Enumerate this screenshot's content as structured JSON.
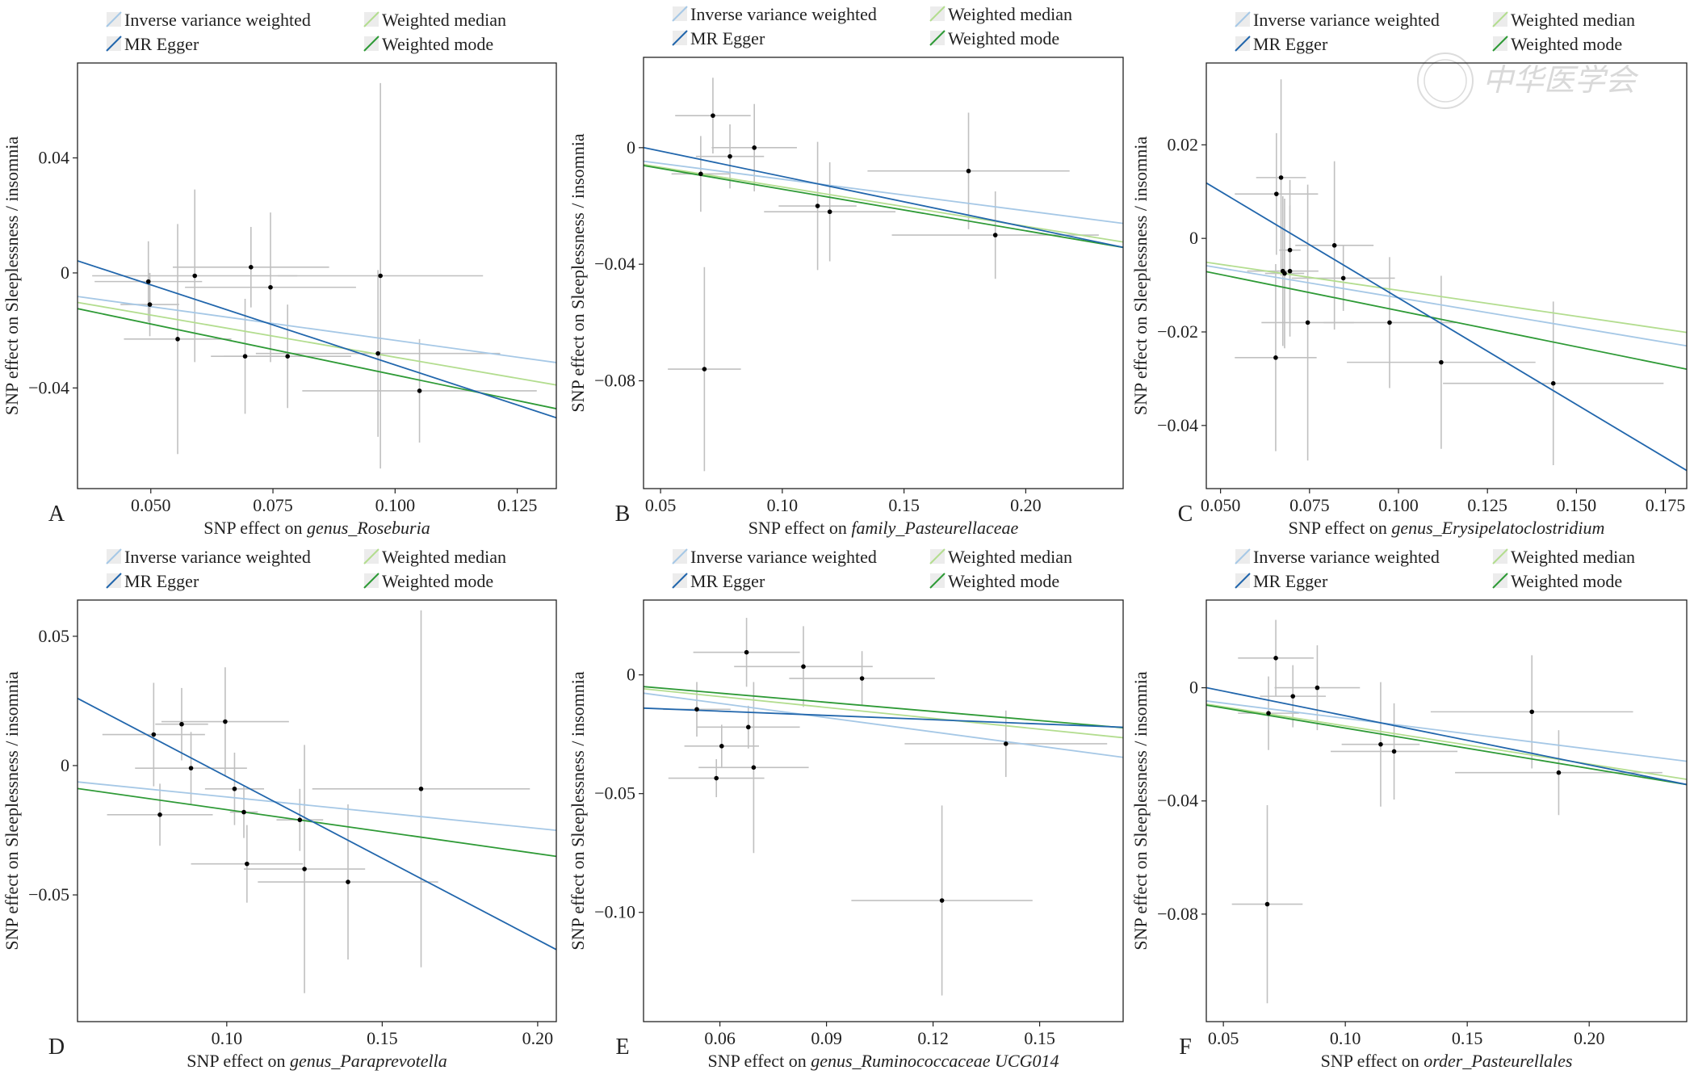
{
  "figure": {
    "legend_labels": {
      "ivw": "Inverse variance weighted",
      "egger": "MR Egger",
      "wmedian": "Weighted median",
      "wmode": "Weighted mode"
    },
    "watermark_text": "中华医学会",
    "colors": {
      "ivw": "#a6c8e6",
      "egger": "#2166ac",
      "wmedian": "#b3dd8f",
      "wmode": "#2e9a36",
      "errorbar": "#c0c0c0",
      "point": "#000000",
      "frame": "#222222"
    }
  },
  "chart_data": [
    {
      "panel": "A",
      "type": "scatter",
      "xlabel_prefix": "SNP effect on ",
      "xlabel_taxon": "genus_Roseburia",
      "ylabel": "SNP effect on Sleeplessness / insomnia",
      "xlim": [
        0.035,
        0.133
      ],
      "ylim": [
        -0.075,
        0.073
      ],
      "xticks": [
        0.05,
        0.075,
        0.1,
        0.125
      ],
      "xtick_labels": [
        "0.050",
        "0.075",
        "0.100",
        "0.125"
      ],
      "yticks": [
        0.04,
        0.0,
        -0.04
      ],
      "ytick_labels": [
        "0.04",
        "0",
        "−0.04"
      ],
      "points": [
        {
          "x": 0.0495,
          "y": -0.003,
          "se_x": 0.011,
          "se_y": 0.014
        },
        {
          "x": 0.0498,
          "y": -0.011,
          "se_x": 0.006,
          "se_y": 0.011
        },
        {
          "x": 0.0555,
          "y": -0.023,
          "se_x": 0.011,
          "se_y": 0.04
        },
        {
          "x": 0.059,
          "y": -0.001,
          "se_x": 0.021,
          "se_y": 0.03
        },
        {
          "x": 0.0693,
          "y": -0.029,
          "se_x": 0.007,
          "se_y": 0.02
        },
        {
          "x": 0.0705,
          "y": 0.002,
          "se_x": 0.016,
          "se_y": 0.014
        },
        {
          "x": 0.0745,
          "y": -0.005,
          "se_x": 0.0175,
          "se_y": 0.026
        },
        {
          "x": 0.078,
          "y": -0.029,
          "se_x": 0.013,
          "se_y": 0.018
        },
        {
          "x": 0.0965,
          "y": -0.028,
          "se_x": 0.025,
          "se_y": 0.029
        },
        {
          "x": 0.097,
          "y": -0.001,
          "se_x": 0.021,
          "se_y": 0.067
        },
        {
          "x": 0.105,
          "y": -0.041,
          "se_x": 0.024,
          "se_y": 0.018
        }
      ],
      "lines": [
        {
          "method": "ivw",
          "intercept": 0.0,
          "slope": -0.2344
        },
        {
          "method": "wmedian",
          "intercept": 0.0,
          "slope": -0.293
        },
        {
          "method": "wmode",
          "intercept": 0.0,
          "slope": -0.355
        },
        {
          "method": "egger",
          "intercept": 0.0237,
          "slope": -0.5569
        }
      ]
    },
    {
      "panel": "B",
      "type": "scatter",
      "xlabel_prefix": "SNP effect on ",
      "xlabel_taxon": "family_Pasteurellaceae",
      "ylabel": "SNP effect on Sleeplessness / insomnia",
      "xlim": [
        0.043,
        0.24
      ],
      "ylim": [
        -0.117,
        0.031
      ],
      "xticks": [
        0.05,
        0.1,
        0.15,
        0.2
      ],
      "xtick_labels": [
        "0.05",
        "0.10",
        "0.15",
        "0.20"
      ],
      "yticks": [
        0.0,
        -0.04,
        -0.08
      ],
      "ytick_labels": [
        "0",
        "−0.04",
        "−0.08"
      ],
      "points": [
        {
          "x": 0.0665,
          "y": -0.009,
          "se_x": 0.012,
          "se_y": 0.013
        },
        {
          "x": 0.068,
          "y": -0.076,
          "se_x": 0.015,
          "se_y": 0.035
        },
        {
          "x": 0.0715,
          "y": 0.011,
          "se_x": 0.0155,
          "se_y": 0.013
        },
        {
          "x": 0.0785,
          "y": -0.003,
          "se_x": 0.014,
          "se_y": 0.011
        },
        {
          "x": 0.0885,
          "y": 0.0,
          "se_x": 0.0175,
          "se_y": 0.015
        },
        {
          "x": 0.1145,
          "y": -0.02,
          "se_x": 0.016,
          "se_y": 0.022
        },
        {
          "x": 0.1195,
          "y": -0.022,
          "se_x": 0.027,
          "se_y": 0.017
        },
        {
          "x": 0.1765,
          "y": -0.008,
          "se_x": 0.0415,
          "se_y": 0.02
        },
        {
          "x": 0.1875,
          "y": -0.03,
          "se_x": 0.0425,
          "se_y": 0.015
        }
      ],
      "lines": [
        {
          "method": "ivw",
          "intercept": 0.0,
          "slope": -0.1083
        },
        {
          "method": "wmedian",
          "intercept": 0.0,
          "slope": -0.1349
        },
        {
          "method": "wmode",
          "intercept": 0.0,
          "slope": -0.1426
        },
        {
          "method": "egger",
          "intercept": 0.0075,
          "slope": -0.1738
        }
      ]
    },
    {
      "panel": "C",
      "type": "scatter",
      "xlabel_prefix": "SNP effect on ",
      "xlabel_taxon": "genus_Erysipelatoclostridium",
      "ylabel": "SNP effect on Sleeplessness / insomnia",
      "xlim": [
        0.046,
        0.181
      ],
      "ylim": [
        -0.0535,
        0.0375
      ],
      "xticks": [
        0.05,
        0.075,
        0.1,
        0.125,
        0.15,
        0.175
      ],
      "xtick_labels": [
        "0.050",
        "0.075",
        "0.100",
        "0.125",
        "0.150",
        "0.175"
      ],
      "yticks": [
        0.02,
        0.0,
        -0.02,
        -0.04
      ],
      "ytick_labels": [
        "0.02",
        "0",
        "−0.02",
        "−0.04"
      ],
      "points": [
        {
          "x": 0.0655,
          "y": -0.0255,
          "se_x": 0.0115,
          "se_y": 0.02
        },
        {
          "x": 0.0657,
          "y": 0.0095,
          "se_x": 0.0117,
          "se_y": 0.013
        },
        {
          "x": 0.067,
          "y": 0.013,
          "se_x": 0.007,
          "se_y": 0.021
        },
        {
          "x": 0.0675,
          "y": -0.007,
          "se_x": 0.01,
          "se_y": 0.016
        },
        {
          "x": 0.068,
          "y": -0.0075,
          "se_x": 0.0055,
          "se_y": 0.016
        },
        {
          "x": 0.0695,
          "y": -0.0025,
          "se_x": 0.003,
          "se_y": 0.015
        },
        {
          "x": 0.0695,
          "y": -0.007,
          "se_x": 0.0035,
          "se_y": 0.014
        },
        {
          "x": 0.0745,
          "y": -0.018,
          "se_x": 0.013,
          "se_y": 0.0295
        },
        {
          "x": 0.082,
          "y": -0.0015,
          "se_x": 0.011,
          "se_y": 0.018
        },
        {
          "x": 0.0845,
          "y": -0.0085,
          "se_x": 0.0145,
          "se_y": 0.007
        },
        {
          "x": 0.0975,
          "y": -0.018,
          "se_x": 0.0185,
          "se_y": 0.014
        },
        {
          "x": 0.112,
          "y": -0.0265,
          "se_x": 0.0265,
          "se_y": 0.0185
        },
        {
          "x": 0.1435,
          "y": -0.031,
          "se_x": 0.031,
          "se_y": 0.0175
        }
      ],
      "lines": [
        {
          "method": "ivw",
          "intercept": 0.0,
          "slope": -0.127
        },
        {
          "method": "wmedian",
          "intercept": 0.0,
          "slope": -0.1111
        },
        {
          "method": "wmode",
          "intercept": 0.0,
          "slope": -0.1545
        },
        {
          "method": "egger",
          "intercept": 0.0328,
          "slope": -0.4554
        }
      ]
    },
    {
      "panel": "D",
      "type": "scatter",
      "xlabel_prefix": "SNP effect on ",
      "xlabel_taxon": "genus_Paraprevotella",
      "ylabel": "SNP effect on Sleeplessness / insomnia",
      "xlim": [
        0.052,
        0.206
      ],
      "ylim": [
        -0.099,
        0.064
      ],
      "xticks": [
        0.1,
        0.15,
        0.2
      ],
      "xtick_labels": [
        "0.10",
        "0.15",
        "0.20"
      ],
      "yticks": [
        0.05,
        0.0,
        -0.05
      ],
      "ytick_labels": [
        "0.05",
        "0",
        "−0.05"
      ],
      "points": [
        {
          "x": 0.0765,
          "y": 0.012,
          "se_x": 0.0165,
          "se_y": 0.02
        },
        {
          "x": 0.0785,
          "y": -0.019,
          "se_x": 0.017,
          "se_y": 0.012
        },
        {
          "x": 0.0855,
          "y": 0.016,
          "se_x": 0.0085,
          "se_y": 0.014
        },
        {
          "x": 0.0885,
          "y": -0.001,
          "se_x": 0.018,
          "se_y": 0.014
        },
        {
          "x": 0.0995,
          "y": 0.017,
          "se_x": 0.0205,
          "se_y": 0.021
        },
        {
          "x": 0.1025,
          "y": -0.009,
          "se_x": 0.0095,
          "se_y": 0.014
        },
        {
          "x": 0.1055,
          "y": -0.018,
          "se_x": 0.0045,
          "se_y": 0.01
        },
        {
          "x": 0.1065,
          "y": -0.038,
          "se_x": 0.018,
          "se_y": 0.015
        },
        {
          "x": 0.1235,
          "y": -0.021,
          "se_x": 0.0075,
          "se_y": 0.012
        },
        {
          "x": 0.125,
          "y": -0.04,
          "se_x": 0.0195,
          "se_y": 0.048
        },
        {
          "x": 0.139,
          "y": -0.045,
          "se_x": 0.029,
          "se_y": 0.03
        },
        {
          "x": 0.1625,
          "y": -0.009,
          "se_x": 0.035,
          "se_y": 0.069
        }
      ],
      "lines": [
        {
          "method": "ivw",
          "intercept": 0.0,
          "slope": -0.1215
        },
        {
          "method": "wmode",
          "intercept": 0.0,
          "slope": -0.1704
        },
        {
          "method": "egger",
          "intercept": 0.0588,
          "slope": -0.6308
        }
      ]
    },
    {
      "panel": "E",
      "type": "scatter",
      "xlabel_prefix": "SNP effect on ",
      "xlabel_taxon": "genus_Ruminococcaceae UCG014",
      "ylabel": "SNP effect on Sleeplessness / insomnia",
      "xlim": [
        0.0385,
        0.1735
      ],
      "ylim": [
        -0.146,
        0.0315
      ],
      "xticks": [
        0.06,
        0.09,
        0.12,
        0.15
      ],
      "xtick_labels": [
        "0.06",
        "0.09",
        "0.12",
        "0.15"
      ],
      "yticks": [
        0.0,
        -0.05,
        -0.1
      ],
      "ytick_labels": [
        "0",
        "−0.05",
        "−0.10"
      ],
      "points": [
        {
          "x": 0.0535,
          "y": -0.0145,
          "se_x": 0.0095,
          "se_y": 0.0115
        },
        {
          "x": 0.059,
          "y": -0.0435,
          "se_x": 0.0135,
          "se_y": 0.008
        },
        {
          "x": 0.0605,
          "y": -0.03,
          "se_x": 0.0105,
          "se_y": 0.009
        },
        {
          "x": 0.0675,
          "y": 0.0095,
          "se_x": 0.015,
          "se_y": 0.0145
        },
        {
          "x": 0.068,
          "y": -0.022,
          "se_x": 0.0145,
          "se_y": 0.009
        },
        {
          "x": 0.0695,
          "y": -0.039,
          "se_x": 0.0155,
          "se_y": 0.036
        },
        {
          "x": 0.0835,
          "y": 0.0035,
          "se_x": 0.0195,
          "se_y": 0.017
        },
        {
          "x": 0.1,
          "y": -0.0015,
          "se_x": 0.0205,
          "se_y": 0.0115
        },
        {
          "x": 0.1225,
          "y": -0.095,
          "se_x": 0.0255,
          "se_y": 0.04
        },
        {
          "x": 0.1405,
          "y": -0.029,
          "se_x": 0.0285,
          "se_y": 0.014
        }
      ],
      "lines": [
        {
          "method": "ivw",
          "intercept": 0.0,
          "slope": -0.2001
        },
        {
          "method": "wmedian",
          "intercept": 0.0,
          "slope": -0.1525
        },
        {
          "method": "wmode",
          "intercept": 0.0,
          "slope": -0.1283
        },
        {
          "method": "egger",
          "intercept": -0.0117,
          "slope": -0.0597
        }
      ]
    },
    {
      "panel": "F",
      "type": "scatter",
      "xlabel_prefix": "SNP effect on ",
      "xlabel_taxon": "order_Pasteurellales",
      "ylabel": "SNP effect on Sleeplessness / insomnia",
      "xlim": [
        0.043,
        0.24
      ],
      "ylim": [
        -0.118,
        0.031
      ],
      "xticks": [
        0.05,
        0.1,
        0.15,
        0.2
      ],
      "xtick_labels": [
        "0.05",
        "0.10",
        "0.15",
        "0.20"
      ],
      "yticks": [
        0.0,
        -0.04,
        -0.08
      ],
      "ytick_labels": [
        "0",
        "−0.04",
        "−0.08"
      ],
      "points": [
        {
          "x": 0.0685,
          "y": -0.009,
          "se_x": 0.0125,
          "se_y": 0.013
        },
        {
          "x": 0.068,
          "y": -0.0765,
          "se_x": 0.0145,
          "se_y": 0.035
        },
        {
          "x": 0.0715,
          "y": 0.0105,
          "se_x": 0.0155,
          "se_y": 0.0135
        },
        {
          "x": 0.0785,
          "y": -0.003,
          "se_x": 0.0135,
          "se_y": 0.011
        },
        {
          "x": 0.0885,
          "y": 0.0,
          "se_x": 0.0175,
          "se_y": 0.015
        },
        {
          "x": 0.1145,
          "y": -0.02,
          "se_x": 0.016,
          "se_y": 0.022
        },
        {
          "x": 0.12,
          "y": -0.0225,
          "se_x": 0.026,
          "se_y": 0.017
        },
        {
          "x": 0.1765,
          "y": -0.0085,
          "se_x": 0.0415,
          "se_y": 0.02
        },
        {
          "x": 0.1875,
          "y": -0.03,
          "se_x": 0.0425,
          "se_y": 0.015
        }
      ],
      "lines": [
        {
          "method": "ivw",
          "intercept": 0.0,
          "slope": -0.1083
        },
        {
          "method": "wmedian",
          "intercept": 0.0,
          "slope": -0.1349
        },
        {
          "method": "wmode",
          "intercept": 0.0,
          "slope": -0.1426
        },
        {
          "method": "egger",
          "intercept": 0.0075,
          "slope": -0.1738
        }
      ]
    }
  ]
}
